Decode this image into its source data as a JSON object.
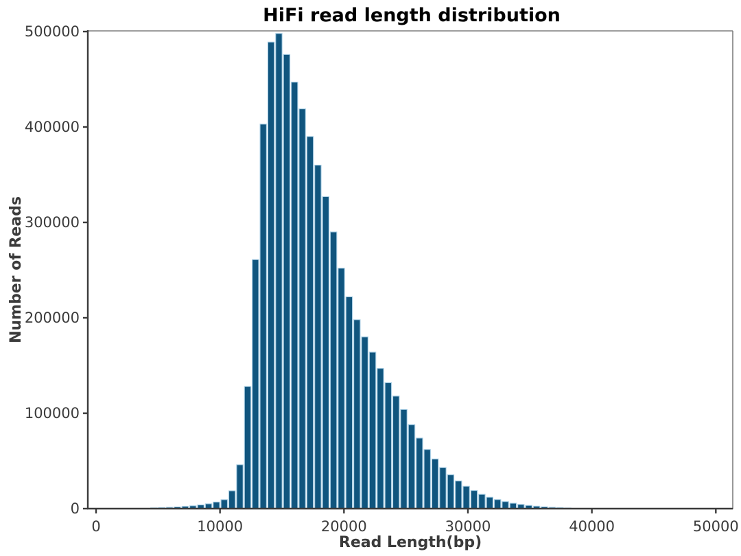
{
  "title": "HiFi read length distribution",
  "chart_data": {
    "type": "bar",
    "title": "HiFi read length distribution",
    "xlabel": "Read Length(bp)",
    "ylabel": "Number of Reads",
    "xlim": [
      -660,
      51370
    ],
    "ylim": [
      0,
      500000
    ],
    "grid": false,
    "legend": "none",
    "x_ticks": [
      0,
      10000,
      20000,
      30000,
      40000,
      50000
    ],
    "x_tick_labels": [
      "0",
      "10000",
      "20000",
      "30000",
      "40000",
      "50000"
    ],
    "y_ticks": [
      0,
      100000,
      200000,
      300000,
      400000,
      500000
    ],
    "y_tick_labels": [
      "0",
      "100000",
      "200000",
      "300000",
      "400000",
      "500000"
    ],
    "bin_width_bp": 630,
    "bin_centers_bp": [
      4670,
      5300,
      5930,
      6560,
      7190,
      7820,
      8450,
      9080,
      9710,
      10340,
      10970,
      11600,
      12230,
      12860,
      13490,
      14120,
      14750,
      15380,
      16010,
      16640,
      17270,
      17900,
      18530,
      19160,
      19790,
      20420,
      21050,
      21680,
      22310,
      22940,
      23570,
      24200,
      24830,
      25460,
      26090,
      26720,
      27350,
      27980,
      28610,
      29240,
      29870,
      30500,
      31130,
      31760,
      32390,
      33020,
      33650,
      34280,
      34910,
      35540,
      36170,
      36800,
      37430,
      38060
    ],
    "counts": [
      800,
      1100,
      1400,
      1800,
      2400,
      3000,
      3900,
      5100,
      6900,
      9400,
      18700,
      46000,
      128000,
      261000,
      403000,
      489000,
      498000,
      476000,
      447000,
      419000,
      390000,
      360000,
      327000,
      290000,
      252000,
      222000,
      198000,
      180000,
      164000,
      147000,
      132000,
      118000,
      104000,
      88000,
      74000,
      62000,
      52000,
      43000,
      35500,
      29000,
      23500,
      19000,
      15000,
      12000,
      9500,
      7400,
      5700,
      4400,
      3400,
      2600,
      1900,
      1400,
      1000,
      700
    ]
  },
  "colors": {
    "bar_fill": "#10557e",
    "bar_edge": "#a8cee4",
    "spine_dark": "#3a3a3a",
    "spine_light": "#7f7f7f",
    "tick_text": "#3b3b3b",
    "title_text": "#000000",
    "background": "#ffffff"
  }
}
